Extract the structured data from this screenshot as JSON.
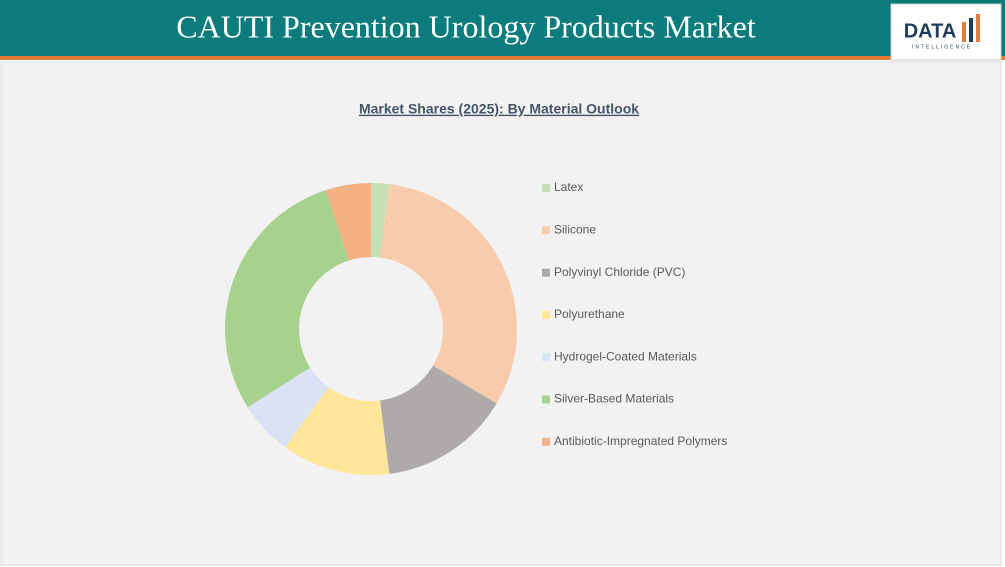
{
  "header": {
    "title": "CAUTI Prevention Urology Products Market",
    "logo": "DATA",
    "logo_sub": "INTELLIGENCE"
  },
  "chart_data": {
    "type": "donut",
    "title": "Market Shares (2025): By Material Outlook",
    "categories": [
      "Latex",
      "Silicone",
      "Polyvinyl Chloride (PVC)",
      "Polyurethane",
      "Hydrogel-Coated Materials",
      "Silver-Based Materials",
      "Antibiotic-Impregnated Polymers"
    ],
    "values": [
      2,
      31.5,
      14.5,
      12,
      6,
      29,
      5
    ],
    "colors": [
      "#c5e0b4",
      "#f8cbad",
      "#aeaaaa",
      "#ffe699",
      "#dae3f3",
      "#a9d18e",
      "#f4b183"
    ],
    "legend": "right"
  }
}
